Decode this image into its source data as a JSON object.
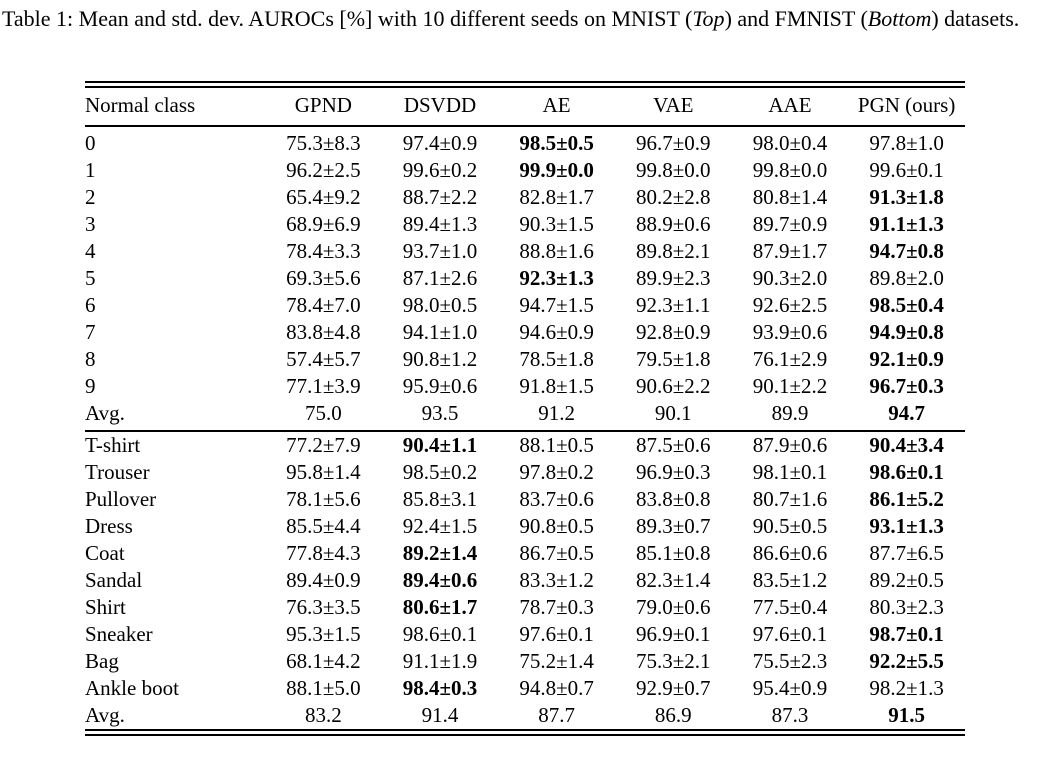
{
  "colors": {
    "text": "#000000",
    "background": "#ffffff"
  },
  "caption": {
    "prefix": "Table 1: Mean and std. dev. AUROCs [%] with 10 different seeds on MNIST (",
    "top_italic": "Top",
    "mid": ") and FMNIST (",
    "bottom_italic": "Bottom",
    "suffix": ") datasets."
  },
  "table": {
    "columns": [
      "Normal class",
      "GPND",
      "DSVDD",
      "AE",
      "VAE",
      "AAE",
      "PGN (ours)"
    ],
    "sections": [
      {
        "name": "MNIST",
        "rows": [
          {
            "label": "0",
            "cells": [
              {
                "t": "75.3±8.3"
              },
              {
                "t": "97.4±0.9"
              },
              {
                "t": "98.5±0.5",
                "b": true
              },
              {
                "t": "96.7±0.9"
              },
              {
                "t": "98.0±0.4"
              },
              {
                "t": "97.8±1.0"
              }
            ]
          },
          {
            "label": "1",
            "cells": [
              {
                "t": "96.2±2.5"
              },
              {
                "t": "99.6±0.2"
              },
              {
                "t": "99.9±0.0",
                "b": true
              },
              {
                "t": "99.8±0.0"
              },
              {
                "t": "99.8±0.0"
              },
              {
                "t": "99.6±0.1"
              }
            ]
          },
          {
            "label": "2",
            "cells": [
              {
                "t": "65.4±9.2"
              },
              {
                "t": "88.7±2.2"
              },
              {
                "t": "82.8±1.7"
              },
              {
                "t": "80.2±2.8"
              },
              {
                "t": "80.8±1.4"
              },
              {
                "t": "91.3±1.8",
                "b": true
              }
            ]
          },
          {
            "label": "3",
            "cells": [
              {
                "t": "68.9±6.9"
              },
              {
                "t": "89.4±1.3"
              },
              {
                "t": "90.3±1.5"
              },
              {
                "t": "88.9±0.6"
              },
              {
                "t": "89.7±0.9"
              },
              {
                "t": "91.1±1.3",
                "b": true
              }
            ]
          },
          {
            "label": "4",
            "cells": [
              {
                "t": "78.4±3.3"
              },
              {
                "t": "93.7±1.0"
              },
              {
                "t": "88.8±1.6"
              },
              {
                "t": "89.8±2.1"
              },
              {
                "t": "87.9±1.7"
              },
              {
                "t": "94.7±0.8",
                "b": true
              }
            ]
          },
          {
            "label": "5",
            "cells": [
              {
                "t": "69.3±5.6"
              },
              {
                "t": "87.1±2.6"
              },
              {
                "t": "92.3±1.3",
                "b": true
              },
              {
                "t": "89.9±2.3"
              },
              {
                "t": "90.3±2.0"
              },
              {
                "t": "89.8±2.0"
              }
            ]
          },
          {
            "label": "6",
            "cells": [
              {
                "t": "78.4±7.0"
              },
              {
                "t": "98.0±0.5"
              },
              {
                "t": "94.7±1.5"
              },
              {
                "t": "92.3±1.1"
              },
              {
                "t": "92.6±2.5"
              },
              {
                "t": "98.5±0.4",
                "b": true
              }
            ]
          },
          {
            "label": "7",
            "cells": [
              {
                "t": "83.8±4.8"
              },
              {
                "t": "94.1±1.0"
              },
              {
                "t": "94.6±0.9"
              },
              {
                "t": "92.8±0.9"
              },
              {
                "t": "93.9±0.6"
              },
              {
                "t": "94.9±0.8",
                "b": true
              }
            ]
          },
          {
            "label": "8",
            "cells": [
              {
                "t": "57.4±5.7"
              },
              {
                "t": "90.8±1.2"
              },
              {
                "t": "78.5±1.8"
              },
              {
                "t": "79.5±1.8"
              },
              {
                "t": "76.1±2.9"
              },
              {
                "t": "92.1±0.9",
                "b": true
              }
            ]
          },
          {
            "label": "9",
            "cells": [
              {
                "t": "77.1±3.9"
              },
              {
                "t": "95.9±0.6"
              },
              {
                "t": "91.8±1.5"
              },
              {
                "t": "90.6±2.2"
              },
              {
                "t": "90.1±2.2"
              },
              {
                "t": "96.7±0.3",
                "b": true
              }
            ]
          },
          {
            "label": "Avg.",
            "cells": [
              {
                "t": "75.0"
              },
              {
                "t": "93.5"
              },
              {
                "t": "91.2"
              },
              {
                "t": "90.1"
              },
              {
                "t": "89.9"
              },
              {
                "t": "94.7",
                "b": true
              }
            ]
          }
        ]
      },
      {
        "name": "FMNIST",
        "rows": [
          {
            "label": "T-shirt",
            "cells": [
              {
                "t": "77.2±7.9"
              },
              {
                "t": "90.4±1.1",
                "b": true
              },
              {
                "t": "88.1±0.5"
              },
              {
                "t": "87.5±0.6"
              },
              {
                "t": "87.9±0.6"
              },
              {
                "t": "90.4±3.4",
                "b": true
              }
            ]
          },
          {
            "label": "Trouser",
            "cells": [
              {
                "t": "95.8±1.4"
              },
              {
                "t": "98.5±0.2"
              },
              {
                "t": "97.8±0.2"
              },
              {
                "t": "96.9±0.3"
              },
              {
                "t": "98.1±0.1"
              },
              {
                "t": "98.6±0.1",
                "b": true
              }
            ]
          },
          {
            "label": "Pullover",
            "cells": [
              {
                "t": "78.1±5.6"
              },
              {
                "t": "85.8±3.1"
              },
              {
                "t": "83.7±0.6"
              },
              {
                "t": "83.8±0.8"
              },
              {
                "t": "80.7±1.6"
              },
              {
                "t": "86.1±5.2",
                "b": true
              }
            ]
          },
          {
            "label": "Dress",
            "cells": [
              {
                "t": "85.5±4.4"
              },
              {
                "t": "92.4±1.5"
              },
              {
                "t": "90.8±0.5"
              },
              {
                "t": "89.3±0.7"
              },
              {
                "t": "90.5±0.5"
              },
              {
                "t": "93.1±1.3",
                "b": true
              }
            ]
          },
          {
            "label": "Coat",
            "cells": [
              {
                "t": "77.8±4.3"
              },
              {
                "t": "89.2±1.4",
                "b": true
              },
              {
                "t": "86.7±0.5"
              },
              {
                "t": "85.1±0.8"
              },
              {
                "t": "86.6±0.6"
              },
              {
                "t": "87.7±6.5"
              }
            ]
          },
          {
            "label": "Sandal",
            "cells": [
              {
                "t": "89.4±0.9"
              },
              {
                "t": "89.4±0.6",
                "b": true
              },
              {
                "t": "83.3±1.2"
              },
              {
                "t": "82.3±1.4"
              },
              {
                "t": "83.5±1.2"
              },
              {
                "t": "89.2±0.5"
              }
            ]
          },
          {
            "label": "Shirt",
            "cells": [
              {
                "t": "76.3±3.5"
              },
              {
                "t": "80.6±1.7",
                "b": true
              },
              {
                "t": "78.7±0.3"
              },
              {
                "t": "79.0±0.6"
              },
              {
                "t": "77.5±0.4"
              },
              {
                "t": "80.3±2.3"
              }
            ]
          },
          {
            "label": "Sneaker",
            "cells": [
              {
                "t": "95.3±1.5"
              },
              {
                "t": "98.6±0.1"
              },
              {
                "t": "97.6±0.1"
              },
              {
                "t": "96.9±0.1"
              },
              {
                "t": "97.6±0.1"
              },
              {
                "t": "98.7±0.1",
                "b": true
              }
            ]
          },
          {
            "label": "Bag",
            "cells": [
              {
                "t": "68.1±4.2"
              },
              {
                "t": "91.1±1.9"
              },
              {
                "t": "75.2±1.4"
              },
              {
                "t": "75.3±2.1"
              },
              {
                "t": "75.5±2.3"
              },
              {
                "t": "92.2±5.5",
                "b": true
              }
            ]
          },
          {
            "label": "Ankle boot",
            "cells": [
              {
                "t": "88.1±5.0"
              },
              {
                "t": "98.4±0.3",
                "b": true
              },
              {
                "t": "94.8±0.7"
              },
              {
                "t": "92.9±0.7"
              },
              {
                "t": "95.4±0.9"
              },
              {
                "t": "98.2±1.3"
              }
            ]
          },
          {
            "label": "Avg.",
            "cells": [
              {
                "t": "83.2"
              },
              {
                "t": "91.4"
              },
              {
                "t": "87.7"
              },
              {
                "t": "86.9"
              },
              {
                "t": "87.3"
              },
              {
                "t": "91.5",
                "b": true
              }
            ]
          }
        ]
      }
    ]
  }
}
